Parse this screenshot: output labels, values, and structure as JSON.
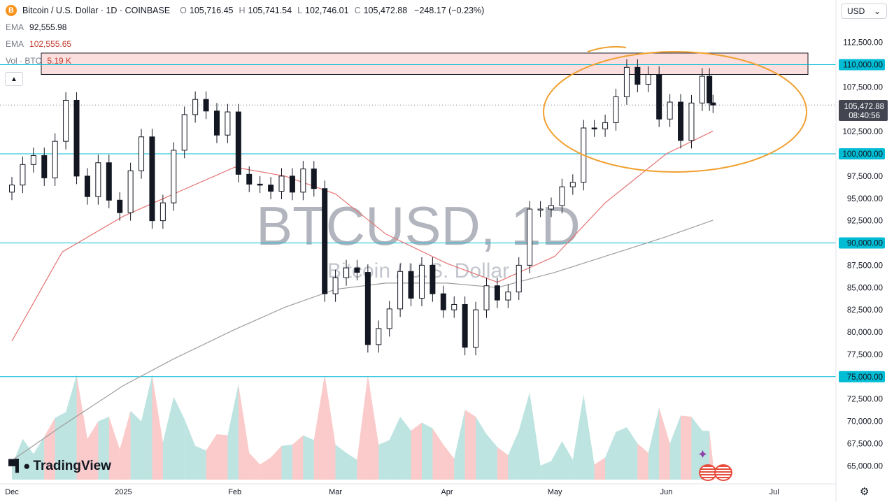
{
  "header": {
    "coin_symbol": "B",
    "title": "Bitcoin / U.S. Dollar · 1D · COINBASE",
    "o_label": "O",
    "o_value": "105,716.45",
    "h_label": "H",
    "h_value": "105,741.54",
    "l_label": "L",
    "l_value": "102,746.01",
    "c_label": "C",
    "c_value": "105,472.88",
    "change": "−248.17 (−0.23%)"
  },
  "indicators": [
    {
      "label": "EMA",
      "value": "92,555.98"
    },
    {
      "label": "EMA",
      "value": "102,555.65"
    },
    {
      "label": "Vol · BTC",
      "value": "5.19 K"
    }
  ],
  "currency_selector": {
    "value": "USD",
    "chevron": "chevron-down-icon"
  },
  "watermark": {
    "symbol": "BTCUSD, 1D",
    "name": "Bitcoin / U.S. Dollar"
  },
  "logo": {
    "text": "TradingView"
  },
  "price_label": {
    "price": "105,472.88",
    "countdown": "08:40:56"
  },
  "colors": {
    "up": "#26a69a",
    "down": "#ef5350",
    "ema_short": "#e57373",
    "ema_long": "#9e9e9e",
    "hline": "#00bcd4",
    "zone": "#f8c8c8",
    "ellipse": "#f0a030"
  },
  "chart_data": {
    "type": "candlestick",
    "symbol": "BTCUSD",
    "timeframe": "1D",
    "exchange": "COINBASE",
    "y_ticks": [
      112500,
      110000,
      107500,
      105000,
      102500,
      100000,
      97500,
      95000,
      92500,
      90000,
      87500,
      85000,
      82500,
      80000,
      77500,
      75000,
      72500,
      70000,
      67500,
      65000
    ],
    "y_tick_labels": [
      "112,500.00",
      "110,000.00",
      "107,500.00",
      "105,000.00",
      "102,500.00",
      "100,000.00",
      "97,500.00",
      "95,000.00",
      "92,500.00",
      "90,000.00",
      "87,500.00",
      "85,000.00",
      "82,500.00",
      "80,000.00",
      "77,500.00",
      "75,000.00",
      "72,500.00",
      "70,000.00",
      "67,500.00",
      "65,000.00"
    ],
    "ylim": [
      64000,
      113700
    ],
    "x_tick_labels": [
      "Dec",
      "2025",
      "Feb",
      "Mar",
      "Apr",
      "May",
      "Jun",
      "Jul"
    ],
    "x_tick_dates": [
      "2024-12-01",
      "2025-01-01",
      "2025-02-01",
      "2025-03-01",
      "2025-04-01",
      "2025-05-01",
      "2025-06-01",
      "2025-07-01"
    ],
    "horizontal_lines": [
      {
        "value": 110000,
        "label": "110,000.00"
      },
      {
        "value": 100000,
        "label": "100,000.00"
      },
      {
        "value": 90000,
        "label": "90,000.00"
      },
      {
        "value": 75000,
        "label": "75,000.00"
      }
    ],
    "resistance_zone": [
      108900,
      111300
    ],
    "last_price": 105472.88,
    "closes": [
      {
        "date": "2024-12-01",
        "c": 96500
      },
      {
        "date": "2024-12-04",
        "c": 98800
      },
      {
        "date": "2024-12-07",
        "c": 99800
      },
      {
        "date": "2024-12-10",
        "c": 97300
      },
      {
        "date": "2024-12-13",
        "c": 101400
      },
      {
        "date": "2024-12-16",
        "c": 106000
      },
      {
        "date": "2024-12-19",
        "c": 97500
      },
      {
        "date": "2024-12-22",
        "c": 95200
      },
      {
        "date": "2024-12-25",
        "c": 99000
      },
      {
        "date": "2024-12-28",
        "c": 94800
      },
      {
        "date": "2024-12-31",
        "c": 93400
      },
      {
        "date": "2025-01-03",
        "c": 98100
      },
      {
        "date": "2025-01-06",
        "c": 101900
      },
      {
        "date": "2025-01-09",
        "c": 92500
      },
      {
        "date": "2025-01-12",
        "c": 94500
      },
      {
        "date": "2025-01-15",
        "c": 100400
      },
      {
        "date": "2025-01-18",
        "c": 104400
      },
      {
        "date": "2025-01-21",
        "c": 106100
      },
      {
        "date": "2025-01-24",
        "c": 104800
      },
      {
        "date": "2025-01-27",
        "c": 102100
      },
      {
        "date": "2025-01-30",
        "c": 104700
      },
      {
        "date": "2025-02-02",
        "c": 97700
      },
      {
        "date": "2025-02-05",
        "c": 96600
      },
      {
        "date": "2025-02-08",
        "c": 96500
      },
      {
        "date": "2025-02-11",
        "c": 95800
      },
      {
        "date": "2025-02-14",
        "c": 97500
      },
      {
        "date": "2025-02-17",
        "c": 95700
      },
      {
        "date": "2025-02-20",
        "c": 98300
      },
      {
        "date": "2025-02-23",
        "c": 96100
      },
      {
        "date": "2025-02-26",
        "c": 84300
      },
      {
        "date": "2025-03-01",
        "c": 86100
      },
      {
        "date": "2025-03-04",
        "c": 87200
      },
      {
        "date": "2025-03-07",
        "c": 86700
      },
      {
        "date": "2025-03-10",
        "c": 78600
      },
      {
        "date": "2025-03-13",
        "c": 80400
      },
      {
        "date": "2025-03-16",
        "c": 82600
      },
      {
        "date": "2025-03-19",
        "c": 86800
      },
      {
        "date": "2025-03-22",
        "c": 83800
      },
      {
        "date": "2025-03-25",
        "c": 87500
      },
      {
        "date": "2025-03-28",
        "c": 84300
      },
      {
        "date": "2025-03-31",
        "c": 82500
      },
      {
        "date": "2025-04-03",
        "c": 83100
      },
      {
        "date": "2025-04-06",
        "c": 78300
      },
      {
        "date": "2025-04-09",
        "c": 82500
      },
      {
        "date": "2025-04-12",
        "c": 85200
      },
      {
        "date": "2025-04-15",
        "c": 83600
      },
      {
        "date": "2025-04-18",
        "c": 84500
      },
      {
        "date": "2025-04-21",
        "c": 87500
      },
      {
        "date": "2025-04-24",
        "c": 93800
      },
      {
        "date": "2025-04-27",
        "c": 93800
      },
      {
        "date": "2025-04-30",
        "c": 94200
      },
      {
        "date": "2025-05-03",
        "c": 96300
      },
      {
        "date": "2025-05-06",
        "c": 96800
      },
      {
        "date": "2025-05-09",
        "c": 102900
      },
      {
        "date": "2025-05-12",
        "c": 102800
      },
      {
        "date": "2025-05-15",
        "c": 103500
      },
      {
        "date": "2025-05-18",
        "c": 106400
      },
      {
        "date": "2025-05-21",
        "c": 109700
      },
      {
        "date": "2025-05-24",
        "c": 107800
      },
      {
        "date": "2025-05-27",
        "c": 108900
      },
      {
        "date": "2025-05-30",
        "c": 103900
      },
      {
        "date": "2025-06-02",
        "c": 105800
      },
      {
        "date": "2025-06-05",
        "c": 101500
      },
      {
        "date": "2025-06-08",
        "c": 105700
      },
      {
        "date": "2025-06-11",
        "c": 108700
      },
      {
        "date": "2025-06-13",
        "c": 105716
      },
      {
        "date": "2025-06-14",
        "c": 105473
      }
    ],
    "ema_short_points": [
      {
        "date": "2024-12-01",
        "v": 79000
      },
      {
        "date": "2024-12-15",
        "v": 89000
      },
      {
        "date": "2025-01-01",
        "v": 93000
      },
      {
        "date": "2025-01-15",
        "v": 95500
      },
      {
        "date": "2025-02-01",
        "v": 98500
      },
      {
        "date": "2025-02-15",
        "v": 97500
      },
      {
        "date": "2025-03-01",
        "v": 95500
      },
      {
        "date": "2025-03-15",
        "v": 91000
      },
      {
        "date": "2025-04-01",
        "v": 87700
      },
      {
        "date": "2025-04-15",
        "v": 85600
      },
      {
        "date": "2025-05-01",
        "v": 88500
      },
      {
        "date": "2025-05-15",
        "v": 94500
      },
      {
        "date": "2025-06-01",
        "v": 100000
      },
      {
        "date": "2025-06-14",
        "v": 102556
      }
    ],
    "ema_long_points": [
      {
        "date": "2024-12-01",
        "v": 65600
      },
      {
        "date": "2024-12-15",
        "v": 69500
      },
      {
        "date": "2025-01-01",
        "v": 74000
      },
      {
        "date": "2025-01-15",
        "v": 77000
      },
      {
        "date": "2025-02-01",
        "v": 80300
      },
      {
        "date": "2025-02-15",
        "v": 82800
      },
      {
        "date": "2025-03-01",
        "v": 84800
      },
      {
        "date": "2025-03-15",
        "v": 85500
      },
      {
        "date": "2025-04-01",
        "v": 85500
      },
      {
        "date": "2025-04-15",
        "v": 85000
      },
      {
        "date": "2025-05-01",
        "v": 86700
      },
      {
        "date": "2025-05-15",
        "v": 88500
      },
      {
        "date": "2025-06-01",
        "v": 90700
      },
      {
        "date": "2025-06-14",
        "v": 92556
      }
    ]
  }
}
